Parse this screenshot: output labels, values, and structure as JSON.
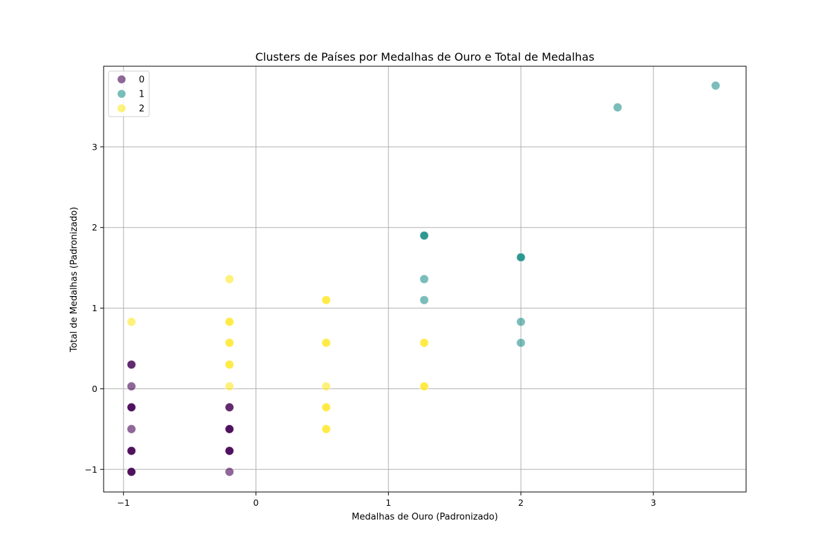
{
  "chart_data": {
    "type": "scatter",
    "title": "Clusters de Países por Medalhas de Ouro e Total de Medalhas",
    "xlabel": "Medalhas de Ouro (Padronizado)",
    "ylabel": "Total de Medalhas (Padronizado)",
    "xlim": [
      -1.15,
      3.7
    ],
    "ylim": [
      -1.28,
      4.0
    ],
    "x_ticks": [
      -1,
      0,
      1,
      2,
      3
    ],
    "x_tick_labels": [
      "−1",
      "0",
      "1",
      "2",
      "3"
    ],
    "y_ticks": [
      -1,
      0,
      1,
      2,
      3
    ],
    "y_tick_labels": [
      "−1",
      "0",
      "1",
      "2",
      "3"
    ],
    "grid": true,
    "legend_position": "top-left",
    "series": [
      {
        "name": "0",
        "color": "#440154",
        "points": [
          {
            "x": -0.94,
            "y": 0.3
          },
          {
            "x": -0.94,
            "y": 0.3
          },
          {
            "x": -0.94,
            "y": 0.03
          },
          {
            "x": -0.94,
            "y": -0.23
          },
          {
            "x": -0.94,
            "y": -0.23
          },
          {
            "x": -0.94,
            "y": -0.23
          },
          {
            "x": -0.94,
            "y": -0.5
          },
          {
            "x": -0.94,
            "y": -0.77
          },
          {
            "x": -0.94,
            "y": -0.77
          },
          {
            "x": -0.94,
            "y": -0.77
          },
          {
            "x": -0.94,
            "y": -1.03
          },
          {
            "x": -0.94,
            "y": -1.03
          },
          {
            "x": -0.94,
            "y": -1.03
          },
          {
            "x": -0.2,
            "y": -0.23
          },
          {
            "x": -0.2,
            "y": -0.23
          },
          {
            "x": -0.2,
            "y": -0.5
          },
          {
            "x": -0.2,
            "y": -0.5
          },
          {
            "x": -0.2,
            "y": -0.5
          },
          {
            "x": -0.2,
            "y": -0.77
          },
          {
            "x": -0.2,
            "y": -0.77
          },
          {
            "x": -0.2,
            "y": -0.77
          },
          {
            "x": -0.2,
            "y": -1.03
          }
        ]
      },
      {
        "name": "1",
        "color": "#21918c",
        "points": [
          {
            "x": 3.47,
            "y": 3.76
          },
          {
            "x": 2.73,
            "y": 3.49
          },
          {
            "x": 1.27,
            "y": 1.9
          },
          {
            "x": 1.27,
            "y": 1.9
          },
          {
            "x": 1.27,
            "y": 1.9
          },
          {
            "x": 2.0,
            "y": 1.63
          },
          {
            "x": 2.0,
            "y": 1.63
          },
          {
            "x": 2.0,
            "y": 1.63
          },
          {
            "x": 1.27,
            "y": 1.36
          },
          {
            "x": 1.27,
            "y": 1.1
          },
          {
            "x": 2.0,
            "y": 0.83
          },
          {
            "x": 2.0,
            "y": 0.57
          }
        ]
      },
      {
        "name": "2",
        "color": "#fde725",
        "points": [
          {
            "x": -0.94,
            "y": 0.83
          },
          {
            "x": -0.2,
            "y": 1.36
          },
          {
            "x": -0.2,
            "y": 0.83
          },
          {
            "x": -0.2,
            "y": 0.83
          },
          {
            "x": -0.2,
            "y": 0.57
          },
          {
            "x": -0.2,
            "y": 0.57
          },
          {
            "x": -0.2,
            "y": 0.3
          },
          {
            "x": -0.2,
            "y": 0.3
          },
          {
            "x": -0.2,
            "y": 0.03
          },
          {
            "x": 0.53,
            "y": 1.1
          },
          {
            "x": 0.53,
            "y": 1.1
          },
          {
            "x": 0.53,
            "y": 0.57
          },
          {
            "x": 0.53,
            "y": 0.57
          },
          {
            "x": 0.53,
            "y": 0.03
          },
          {
            "x": 0.53,
            "y": -0.23
          },
          {
            "x": 0.53,
            "y": -0.23
          },
          {
            "x": 0.53,
            "y": -0.5
          },
          {
            "x": 0.53,
            "y": -0.5
          },
          {
            "x": 1.27,
            "y": 0.57
          },
          {
            "x": 1.27,
            "y": 0.57
          },
          {
            "x": 1.27,
            "y": 0.03
          },
          {
            "x": 1.27,
            "y": 0.03
          }
        ]
      }
    ]
  }
}
